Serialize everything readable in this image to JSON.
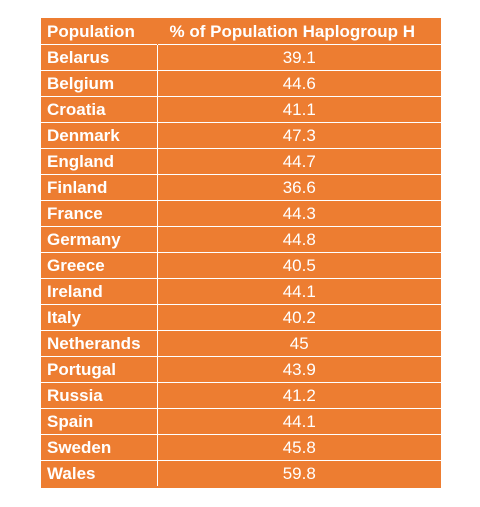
{
  "table": {
    "headers": [
      "Population",
      "% of Population Haplogroup H"
    ],
    "rows": [
      {
        "population": "Belarus",
        "value": "39.1"
      },
      {
        "population": "Belgium",
        "value": "44.6"
      },
      {
        "population": "Croatia",
        "value": "41.1"
      },
      {
        "population": "Denmark",
        "value": "47.3"
      },
      {
        "population": "England",
        "value": "44.7"
      },
      {
        "population": "Finland",
        "value": "36.6"
      },
      {
        "population": "France",
        "value": "44.3"
      },
      {
        "population": "Germany",
        "value": "44.8"
      },
      {
        "population": "Greece",
        "value": "40.5"
      },
      {
        "population": "Ireland",
        "value": "44.1"
      },
      {
        "population": "Italy",
        "value": "40.2"
      },
      {
        "population": "Netherands",
        "value": "45"
      },
      {
        "population": "Portugal",
        "value": "43.9"
      },
      {
        "population": "Russia",
        "value": "41.2"
      },
      {
        "population": "Spain",
        "value": "44.1"
      },
      {
        "population": "Sweden",
        "value": "45.8"
      },
      {
        "population": "Wales",
        "value": "59.8"
      }
    ]
  },
  "colors": {
    "table_background": "#ED7D31",
    "text": "#ffffff",
    "grid_lines": "#ffffff"
  }
}
